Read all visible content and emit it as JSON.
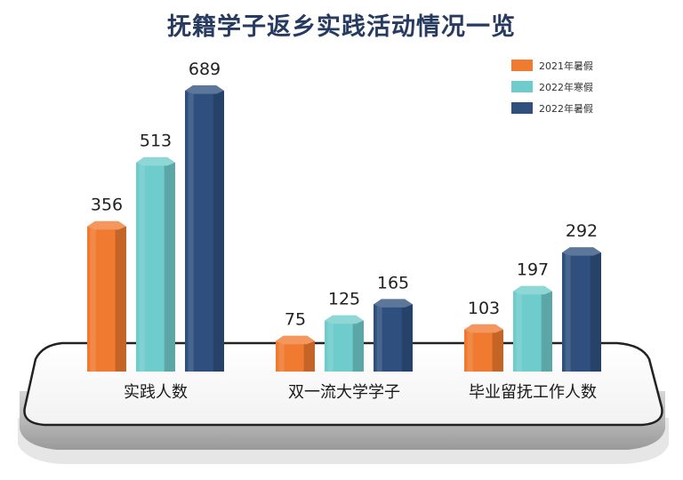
{
  "chart_data": {
    "type": "bar",
    "title": "抚籍学子返乡实践活动情况一览",
    "categories": [
      "实践人数",
      "双一流大学学子",
      "毕业留抚工作人数"
    ],
    "series": [
      {
        "name": "2021年暑假",
        "values": [
          356,
          75,
          103
        ]
      },
      {
        "name": "2022年寒假",
        "values": [
          513,
          125,
          197
        ]
      },
      {
        "name": "2022年暑假",
        "values": [
          689,
          165,
          292
        ]
      }
    ],
    "legend_position": "top-right",
    "ylim": [
      0,
      689
    ],
    "grid": false
  },
  "colors": {
    "series": [
      "#ef7a30",
      "#6fcccc",
      "#2f507f"
    ],
    "title": "#273a60"
  }
}
